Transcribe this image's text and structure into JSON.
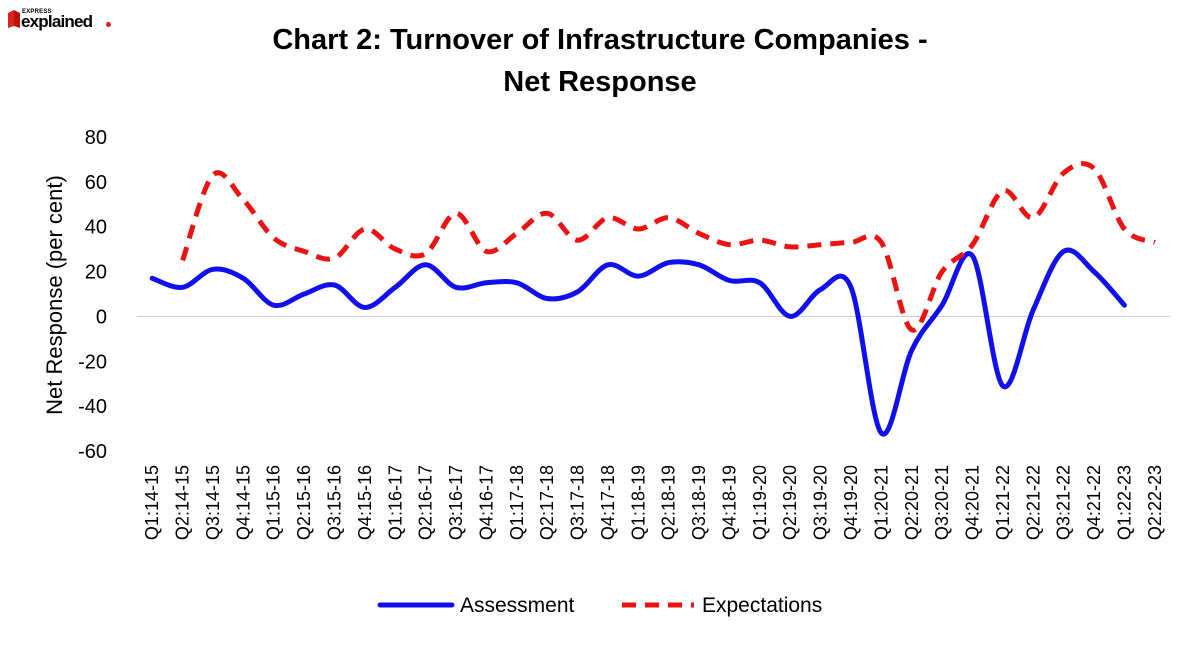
{
  "brand": {
    "top": "EXPRESS",
    "main": "explained",
    "dot": "."
  },
  "colors": {
    "assessment": "#1010ee",
    "expectations": "#ee1111",
    "zero_line": "#cfcfcf"
  },
  "chart_data": {
    "type": "line",
    "title": "Chart 2: Turnover of Infrastructure Companies -",
    "title_line2": "Net Response",
    "xlabel": "",
    "ylabel": "Net Response (per cent)",
    "ylim": [
      -60,
      80
    ],
    "yticks": [
      80,
      60,
      40,
      20,
      0,
      -20,
      -40,
      -60
    ],
    "ytick_labels": [
      "80",
      "60",
      "40",
      "20",
      "0",
      "-20",
      "-40",
      "-60"
    ],
    "categories": [
      "Q1:14-15",
      "Q2:14-15",
      "Q3:14-15",
      "Q4:14-15",
      "Q1:15-16",
      "Q2:15-16",
      "Q3:15-16",
      "Q4:15-16",
      "Q1:16-17",
      "Q2:16-17",
      "Q3:16-17",
      "Q4:16-17",
      "Q1:17-18",
      "Q2:17-18",
      "Q3:17-18",
      "Q4:17-18",
      "Q1:18-19",
      "Q2:18-19",
      "Q3:18-19",
      "Q4:18-19",
      "Q1:19-20",
      "Q2:19-20",
      "Q3:19-20",
      "Q4:19-20",
      "Q1:20-21",
      "Q2:20-21",
      "Q3:20-21",
      "Q4:20-21",
      "Q1:21-22",
      "Q2:21-22",
      "Q3:21-22",
      "Q4:21-22",
      "Q1:22-23",
      "Q2:22-23"
    ],
    "legend": "bottom-center",
    "series": [
      {
        "name": "Assessment",
        "style": "solid",
        "values": [
          17,
          13,
          21,
          17,
          5,
          10,
          14,
          4,
          13,
          23,
          13,
          15,
          15,
          8,
          11,
          23,
          18,
          24,
          23,
          16,
          15,
          0,
          12,
          13,
          -52,
          -15,
          5,
          27,
          -31,
          3,
          29,
          20,
          5,
          null
        ]
      },
      {
        "name": "Expectations",
        "style": "dashed",
        "values": [
          null,
          25,
          63,
          52,
          35,
          29,
          26,
          39,
          30,
          28,
          46,
          29,
          37,
          46,
          34,
          44,
          39,
          44,
          37,
          32,
          34,
          31,
          32,
          33,
          33,
          -6,
          20,
          32,
          56,
          44,
          64,
          66,
          39,
          33
        ]
      }
    ]
  }
}
